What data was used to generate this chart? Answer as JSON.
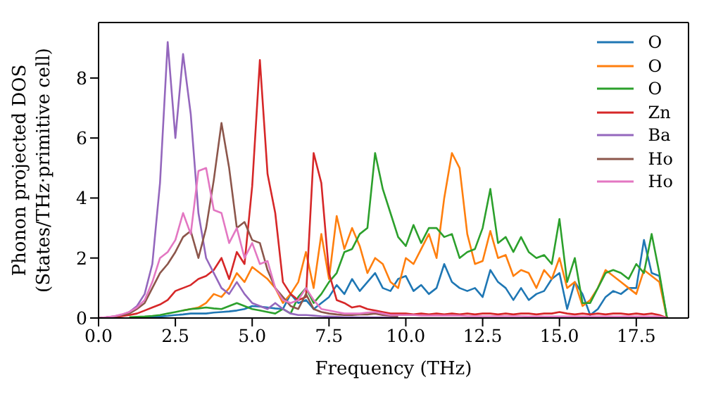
{
  "chart_data": {
    "type": "line",
    "xlabel": "Frequency (THz)",
    "ylabel": "Phonon projected DOS\n(States/THz·primitive cell)",
    "x": [
      0,
      0.25,
      0.5,
      0.75,
      1,
      1.25,
      1.5,
      1.75,
      2,
      2.25,
      2.5,
      2.75,
      3,
      3.25,
      3.5,
      3.75,
      4,
      4.25,
      4.5,
      4.75,
      5,
      5.25,
      5.5,
      5.75,
      6,
      6.25,
      6.5,
      6.75,
      7,
      7.25,
      7.5,
      7.75,
      8,
      8.25,
      8.5,
      8.75,
      9,
      9.25,
      9.5,
      9.75,
      10,
      10.25,
      10.5,
      10.75,
      11,
      11.25,
      11.5,
      11.75,
      12,
      12.25,
      12.5,
      12.75,
      13,
      13.25,
      13.5,
      13.75,
      14,
      14.25,
      14.5,
      14.75,
      15,
      15.25,
      15.5,
      15.75,
      16,
      16.25,
      16.5,
      16.75,
      17,
      17.25,
      17.5,
      17.75,
      18,
      18.25,
      18.5
    ],
    "series": [
      {
        "name": "O",
        "color": "#1f77b4",
        "values": [
          null,
          null,
          null,
          null,
          null,
          null,
          0.03,
          0.04,
          0.05,
          0.07,
          0.1,
          0.12,
          0.15,
          0.15,
          0.15,
          0.18,
          0.2,
          0.22,
          0.25,
          0.3,
          0.4,
          0.38,
          0.35,
          0.32,
          0.3,
          0.8,
          0.5,
          0.6,
          0.3,
          0.5,
          0.7,
          1.1,
          0.8,
          1.3,
          0.9,
          1.2,
          1.5,
          1.0,
          0.9,
          1.3,
          1.4,
          0.9,
          1.1,
          0.8,
          1.0,
          1.8,
          1.2,
          1.0,
          0.9,
          1.0,
          0.7,
          1.6,
          1.2,
          1.0,
          0.6,
          1.0,
          0.6,
          0.8,
          0.9,
          1.3,
          1.5,
          0.3,
          1.2,
          0.8,
          0.1,
          0.3,
          0.7,
          0.9,
          0.8,
          1.0,
          1.0,
          2.6,
          1.5,
          1.4,
          0
        ]
      },
      {
        "name": "O",
        "color": "#ff7f0e",
        "values": [
          null,
          null,
          null,
          null,
          null,
          null,
          null,
          null,
          null,
          null,
          null,
          0.25,
          0.3,
          0.35,
          0.5,
          0.8,
          0.7,
          1.0,
          1.5,
          1.2,
          1.7,
          1.5,
          1.3,
          1.0,
          0.5,
          0.8,
          1.2,
          2.2,
          1.0,
          2.8,
          1.3,
          3.4,
          2.3,
          3.0,
          2.4,
          1.5,
          2.0,
          1.8,
          1.2,
          1.0,
          2.0,
          1.8,
          2.3,
          2.8,
          2.0,
          4.0,
          5.5,
          5.0,
          2.8,
          1.8,
          1.9,
          2.9,
          2.0,
          2.1,
          1.4,
          1.6,
          1.5,
          1.0,
          1.6,
          1.3,
          2.0,
          1.0,
          1.2,
          0.4,
          0.6,
          1.0,
          1.6,
          1.4,
          1.2,
          1.0,
          0.8,
          1.6,
          1.4,
          1.2,
          0
        ]
      },
      {
        "name": "O",
        "color": "#2ca02c",
        "values": [
          null,
          null,
          null,
          null,
          0.03,
          0.04,
          0.05,
          0.07,
          0.1,
          0.15,
          0.2,
          0.25,
          0.3,
          0.32,
          0.35,
          0.32,
          0.3,
          0.4,
          0.5,
          0.4,
          0.3,
          0.25,
          0.2,
          0.15,
          0.3,
          0.15,
          0.7,
          1.0,
          0.5,
          0.8,
          1.2,
          1.5,
          2.2,
          2.3,
          2.8,
          3.0,
          5.5,
          4.3,
          3.5,
          2.7,
          2.4,
          3.1,
          2.5,
          3.0,
          3.0,
          2.7,
          2.8,
          2.0,
          2.2,
          2.3,
          3.0,
          4.3,
          2.5,
          2.7,
          2.2,
          2.7,
          2.2,
          2.0,
          2.1,
          1.8,
          3.3,
          1.2,
          2.0,
          0.5,
          0.5,
          1.0,
          1.5,
          1.6,
          1.5,
          1.3,
          1.8,
          1.5,
          2.8,
          1.5,
          0
        ]
      },
      {
        "name": "Zn",
        "color": "#d62728",
        "values": [
          0,
          0.01,
          0.03,
          0.06,
          0.1,
          0.15,
          0.25,
          0.35,
          0.45,
          0.6,
          0.9,
          1.0,
          1.1,
          1.3,
          1.4,
          1.6,
          2.0,
          1.3,
          2.2,
          1.8,
          4.4,
          8.6,
          4.8,
          3.5,
          1.2,
          0.8,
          0.6,
          0.7,
          5.5,
          4.5,
          1.5,
          0.6,
          0.5,
          0.35,
          0.4,
          0.3,
          0.25,
          0.2,
          0.15,
          0.15,
          0.15,
          0.12,
          0.15,
          0.12,
          0.15,
          0.12,
          0.15,
          0.12,
          0.15,
          0.12,
          0.15,
          0.15,
          0.12,
          0.15,
          0.12,
          0.15,
          0.15,
          0.12,
          0.15,
          0.15,
          0.2,
          0.15,
          0.12,
          0.15,
          0.12,
          0.15,
          0.12,
          0.15,
          0.15,
          0.12,
          0.15,
          0.12,
          0.15,
          0.1,
          0
        ]
      },
      {
        "name": "Ba",
        "color": "#9467bd",
        "values": [
          0,
          0.02,
          0.05,
          0.1,
          0.2,
          0.4,
          0.8,
          1.8,
          4.5,
          9.2,
          6.0,
          8.8,
          6.8,
          3.5,
          2.0,
          1.5,
          1.0,
          0.8,
          1.2,
          0.8,
          0.5,
          0.4,
          0.3,
          0.5,
          0.3,
          0.15,
          0.1,
          0.1,
          0.08,
          0.06,
          0.05,
          0.04,
          0.03,
          0.03,
          0.02,
          0.02,
          0.02,
          0.02,
          0.02,
          0.02,
          null,
          null,
          null,
          null,
          null,
          null,
          null,
          null,
          null,
          null,
          null,
          null,
          null,
          null,
          null,
          null,
          null,
          null,
          null,
          null,
          null,
          null,
          null,
          null,
          null,
          null,
          null,
          null,
          null,
          null,
          null,
          null,
          null,
          null,
          null
        ]
      },
      {
        "name": "Ho",
        "color": "#8c564b",
        "values": [
          0,
          0.02,
          0.05,
          0.1,
          0.15,
          0.3,
          0.5,
          1.0,
          1.5,
          1.8,
          2.2,
          2.7,
          2.9,
          2.0,
          3.0,
          4.6,
          6.5,
          5.0,
          3.0,
          3.2,
          2.6,
          2.5,
          1.6,
          1.0,
          0.7,
          0.4,
          0.3,
          0.8,
          0.3,
          0.2,
          0.15,
          0.12,
          0.1,
          0.1,
          0.12,
          0.12,
          0.15,
          0.1,
          0.08,
          0.06,
          null,
          null,
          null,
          null,
          null,
          null,
          null,
          null,
          null,
          null,
          null,
          null,
          null,
          null,
          null,
          null,
          null,
          null,
          null,
          null,
          null,
          null,
          null,
          null,
          null,
          null,
          null,
          null,
          null,
          null,
          null,
          null,
          null,
          null,
          null
        ]
      },
      {
        "name": "Ho",
        "color": "#e377c2",
        "values": [
          0,
          0.03,
          0.06,
          0.12,
          0.2,
          0.35,
          0.6,
          1.2,
          2.0,
          2.2,
          2.6,
          3.5,
          2.8,
          4.9,
          5.0,
          3.6,
          3.5,
          2.5,
          3.0,
          2.0,
          2.5,
          1.8,
          1.9,
          1.0,
          0.6,
          0.5,
          0.6,
          1.0,
          0.6,
          0.3,
          0.25,
          0.2,
          0.15,
          0.15,
          0.15,
          0.18,
          0.2,
          0.15,
          0.1,
          0.1,
          0.1,
          0.1,
          0.08,
          0.08,
          0.08,
          0.08,
          0.08,
          0.08,
          0.06,
          0.06,
          0.06,
          0.06,
          0.06,
          0.06,
          0.06,
          0.06,
          0.05,
          0.05,
          0.05,
          0.05,
          0.05,
          0.05,
          0.05,
          0.05,
          0.05,
          0.05,
          0.05,
          0.05,
          0.05,
          0.05,
          0.05,
          0.05,
          0.05,
          0.05,
          0
        ]
      }
    ],
    "xlim": [
      0,
      19.2
    ],
    "ylim": [
      0,
      9.85
    ],
    "xticks": [
      {
        "value": 0,
        "label": "0.0"
      },
      {
        "value": 2.5,
        "label": "2.5"
      },
      {
        "value": 5,
        "label": "5.0"
      },
      {
        "value": 7.5,
        "label": "7.5"
      },
      {
        "value": 10,
        "label": "10.0"
      },
      {
        "value": 12.5,
        "label": "12.5"
      },
      {
        "value": 15,
        "label": "15.0"
      },
      {
        "value": 17.5,
        "label": "17.5"
      }
    ],
    "yticks": [
      0,
      2,
      4,
      6,
      8
    ],
    "legend": "top right",
    "grid": false,
    "marker": "none",
    "line_style": "solid"
  }
}
